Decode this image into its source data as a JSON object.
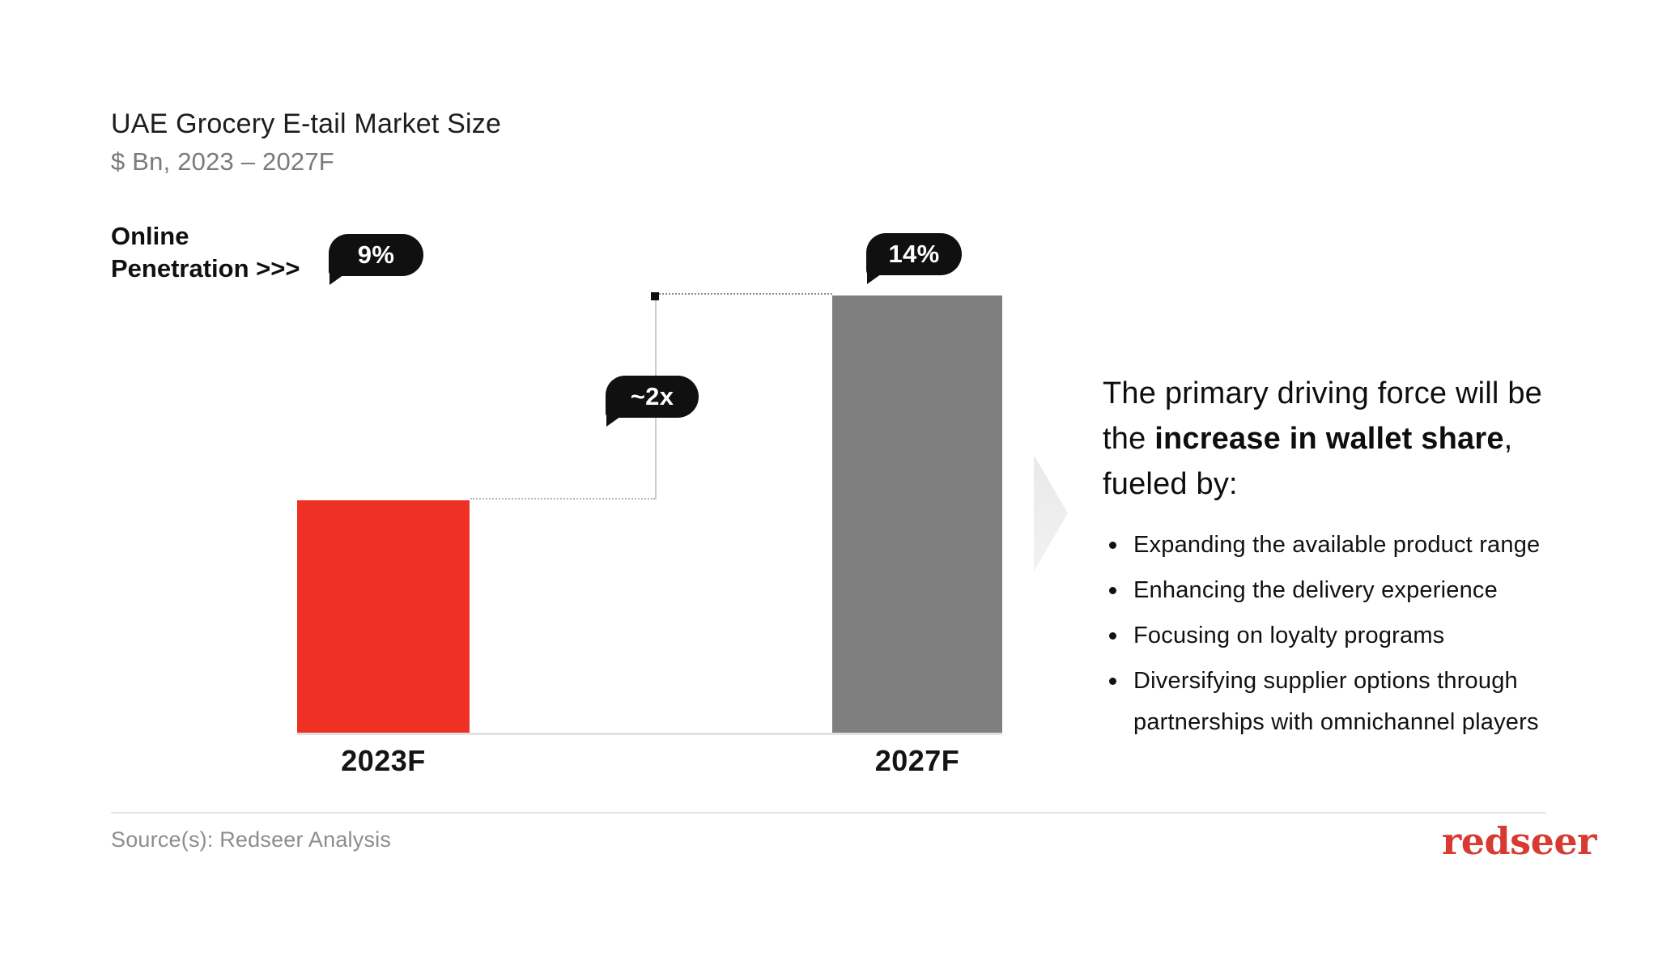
{
  "header": {
    "title": "UAE Grocery E-tail Market Size",
    "subtitle": "$ Bn, 2023 – 2027F"
  },
  "chart": {
    "penetration_label_line1": "Online",
    "penetration_label_line2": "Penetration >>>"
  },
  "chart_data": {
    "type": "bar",
    "title": "UAE Grocery E-tail Market Size",
    "subtitle": "$ Bn, 2023 – 2027F",
    "categories": [
      "2023F",
      "2027F"
    ],
    "series": [
      {
        "name": "UAE Grocery E-tail Market Size ($ Bn)",
        "values": [
          1,
          1.88
        ]
      }
    ],
    "values_are_relative": true,
    "value_labels_shown": false,
    "bar_colors": [
      "#ee3124",
      "#7f7f7f"
    ],
    "annotations": {
      "growth_multiple": "~2x",
      "online_penetration": {
        "2023F": "9%",
        "2027F": "14%"
      }
    },
    "axes": {
      "y_axis_shown": false,
      "x_labels": [
        "2023F",
        "2027F"
      ]
    },
    "legend": "none",
    "grid": "off"
  },
  "panel": {
    "heading_pre": "The primary driving force will be the ",
    "heading_bold": "increase in wallet share",
    "heading_post": ", fueled by:",
    "bullets": [
      "Expanding the available product range",
      "Enhancing the delivery experience",
      "Focusing on loyalty programs",
      "Diversifying supplier options through partnerships with omnichannel players"
    ]
  },
  "footer": {
    "source": "Source(s): Redseer Analysis",
    "logo_text": "redseer"
  },
  "colors": {
    "accent_red": "#ee3124",
    "bar_gray": "#7f7f7f",
    "badge_black": "#101010",
    "logo_red": "#d63a31"
  }
}
